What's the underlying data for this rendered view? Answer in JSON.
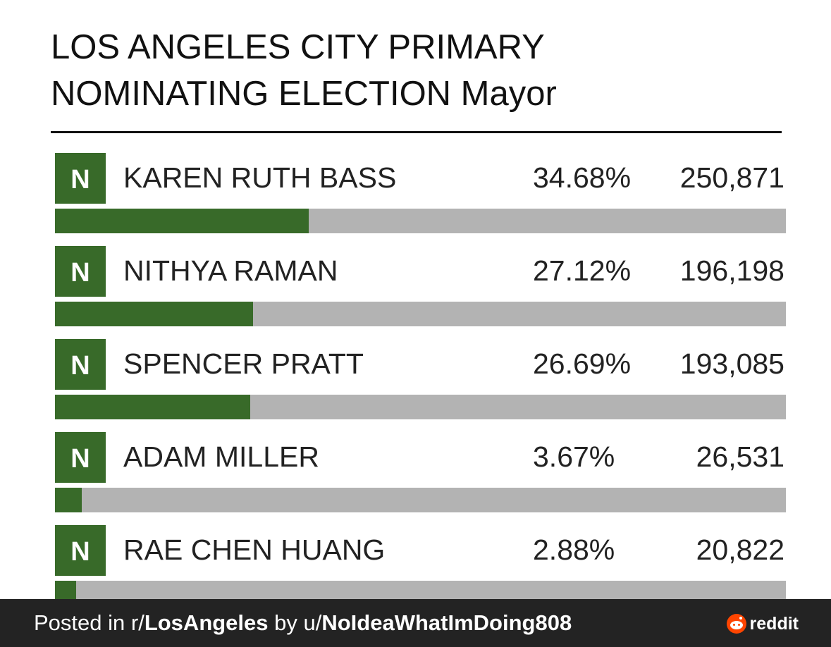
{
  "header": {
    "title": [
      "LOS ANGELES CITY PRIMARY",
      "NOMINATING ELECTION Mayor"
    ]
  },
  "candidates": [
    {
      "badge": "N",
      "name": "KAREN RUTH BASS",
      "percent": 34.68,
      "percent_label": "34.68%",
      "votes": "250,871"
    },
    {
      "badge": "N",
      "name": "NITHYA RAMAN",
      "percent": 27.12,
      "percent_label": "27.12%",
      "votes": "196,198"
    },
    {
      "badge": "N",
      "name": "SPENCER PRATT",
      "percent": 26.69,
      "percent_label": "26.69%",
      "votes": "193,085"
    },
    {
      "badge": "N",
      "name": "ADAM MILLER",
      "percent": 3.67,
      "percent_label": "3.67%",
      "votes": "26,531"
    },
    {
      "badge": "N",
      "name": "RAE CHEN HUANG",
      "percent": 2.88,
      "percent_label": "2.88%",
      "votes": "20,822"
    }
  ],
  "footer": {
    "prefix": "Posted in r/",
    "subreddit": "LosAngeles",
    "middle": " by u/",
    "user": "NoIdeaWhatImDoing808",
    "brand": "reddit"
  }
}
